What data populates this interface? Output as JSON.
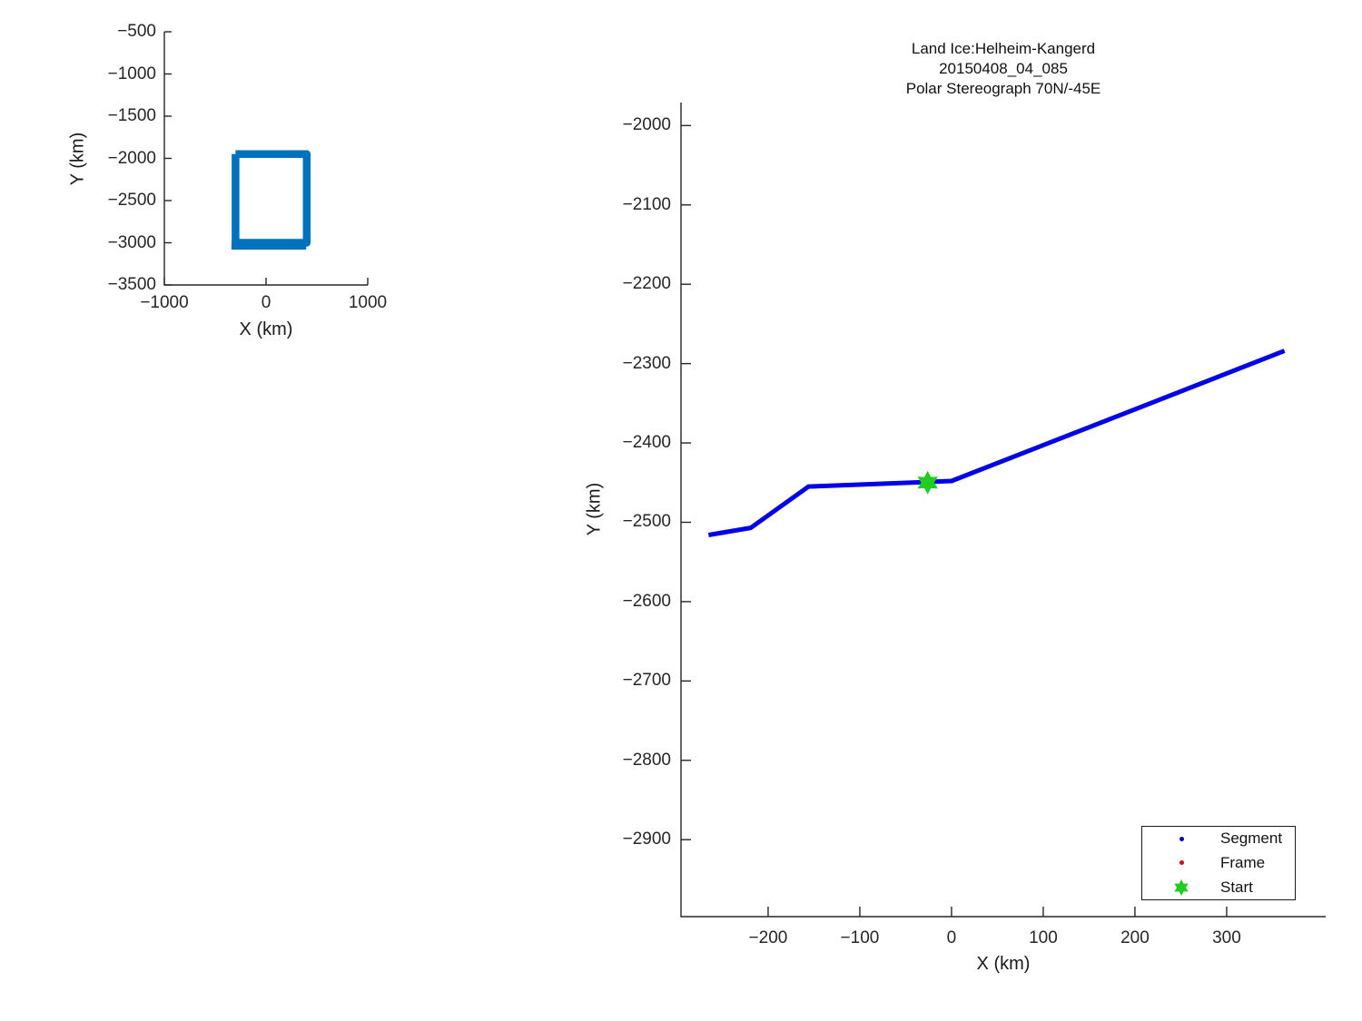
{
  "figure": {
    "background": "#ffffff",
    "axis_color": "#262626",
    "text_color": "#1a1a1a"
  },
  "chart_data": [
    {
      "id": "overview",
      "type": "line",
      "title": "",
      "xlabel": "X (km)",
      "ylabel": "Y (km)",
      "xlim": [
        -1000,
        1000
      ],
      "ylim": [
        -3500,
        -500
      ],
      "x_ticks": [
        -1000,
        0,
        1000
      ],
      "y_ticks": [
        -500,
        -1000,
        -1500,
        -2000,
        -2500,
        -3000,
        -3500
      ],
      "grid": false,
      "legend": null,
      "series": [
        {
          "name": "coverage-box",
          "color": "#0072BD",
          "width": 8.5,
          "points": [
            [
              -300,
              -1950
            ],
            [
              400,
              -1950
            ],
            [
              400,
              -3000
            ],
            [
              -300,
              -3000
            ],
            [
              -300,
              -1950
            ]
          ]
        },
        {
          "name": "coverage-box-bottom-pass",
          "color": "#0072BD",
          "width": 8.5,
          "points": [
            [
              -340,
              -3035
            ],
            [
              395,
              -3035
            ]
          ]
        }
      ]
    },
    {
      "id": "main",
      "type": "line",
      "title_lines": [
        "Land Ice:Helheim-Kangerd",
        "20150408_04_085",
        "Polar Stereograph 70N/-45E"
      ],
      "xlabel": "X (km)",
      "ylabel": "Y (km)",
      "xlim": [
        -295,
        408
      ],
      "ylim": [
        -2997,
        -1971
      ],
      "x_ticks": [
        -200,
        -100,
        0,
        100,
        200,
        300
      ],
      "y_ticks": [
        -2000,
        -2100,
        -2200,
        -2300,
        -2400,
        -2500,
        -2600,
        -2700,
        -2800,
        -2900
      ],
      "grid": false,
      "series": [
        {
          "name": "Segment",
          "color": "#0202e8",
          "width": 5,
          "points": [
            [
              -265,
              -2516
            ],
            [
              -219,
              -2507
            ],
            [
              -156,
              -2455
            ],
            [
              0,
              -2448
            ],
            [
              363,
              -2284
            ]
          ]
        }
      ],
      "markers": [
        {
          "name": "Start",
          "shape": "hexagram",
          "color": "#1fce1f",
          "x": -26,
          "y": -2450,
          "size": 13
        }
      ],
      "legend": {
        "position": "bottom-right",
        "entries": [
          {
            "label": "Segment",
            "marker": "dot",
            "color": "#0000cc"
          },
          {
            "label": "Frame",
            "marker": "dot",
            "color": "#e00000"
          },
          {
            "label": "Start",
            "marker": "hexagram",
            "color": "#1fce1f"
          }
        ]
      }
    }
  ]
}
